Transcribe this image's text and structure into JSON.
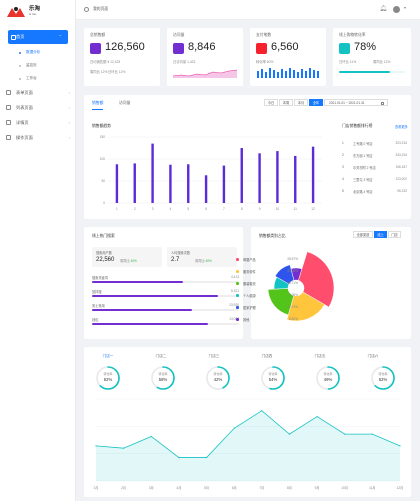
{
  "app": {
    "name": "乐淘",
    "subtitle": "le tao"
  },
  "topbar": {
    "title": "我的页面"
  },
  "sidebar": {
    "items": [
      {
        "label": "首页",
        "active": true
      },
      {
        "label": "数据分析",
        "sub": true,
        "active": true
      },
      {
        "label": "监控页",
        "sub": true
      },
      {
        "label": "工作台",
        "sub": true
      },
      {
        "label": "表单页面"
      },
      {
        "label": "列表页面"
      },
      {
        "label": "详情页"
      },
      {
        "label": "操作页面"
      }
    ]
  },
  "kpis": [
    {
      "label": "总销售额",
      "value": "126,560",
      "line1": "日均销售额 ¥ 12,423",
      "line2a": "周同比 12%",
      "line2b": "日环比 12%",
      "color": "#722ed1"
    },
    {
      "label": "访问量",
      "value": "8,846",
      "line1": "日访问量 1,423",
      "color": "#722ed1"
    },
    {
      "label": "支付笔数",
      "value": "6,560",
      "line1": "转化率 60%",
      "color": "#f5222d"
    },
    {
      "label": "线上购物转化率",
      "value": "78%",
      "line1": "周同比 12%",
      "line2a": "日环比 11%",
      "color": "#13c2c2"
    }
  ],
  "sales": {
    "tabs": [
      "销售额",
      "访问量"
    ],
    "range_buttons": [
      "今日",
      "本周",
      "本月",
      "全年"
    ],
    "date_range": "2021.01.01 ~ 2021.01.31",
    "chart_title": "销售额趋势",
    "rank_title": "门店销售额排行榜",
    "rank_more": "查看更多"
  },
  "rank": [
    {
      "idx": "1",
      "name": "工专路 0 号店",
      "amount": "323,234"
    },
    {
      "idx": "2",
      "name": "东方朋 1 号店",
      "amount": "343,234"
    },
    {
      "idx": "3",
      "name": "中关村附 2 号店",
      "amount": "156,187"
    },
    {
      "idx": "4",
      "name": "三里屯 3 号店",
      "amount": "123,002"
    },
    {
      "idx": "5",
      "name": "北京路 4 号店",
      "amount": "96,232"
    }
  ],
  "chart_data": [
    {
      "type": "bar",
      "title": "销售额趋势",
      "categories": [
        "1",
        "2",
        "3",
        "4",
        "5",
        "6",
        "7",
        "8",
        "9",
        "10",
        "11",
        "12"
      ],
      "values": [
        88,
        90,
        135,
        87,
        88,
        63,
        85,
        125,
        113,
        118,
        107,
        128
      ],
      "yticks": [
        "0",
        "50",
        "100",
        "150"
      ],
      "ylim": [
        0,
        150
      ],
      "color": "#5b2bd6"
    },
    {
      "type": "pie",
      "title": "销售额类别占比",
      "labels": [
        "母婴产品",
        "服务软件",
        "服装鞋衣",
        "个人健康",
        "居家护理",
        "其他"
      ],
      "values": [
        28.57,
        21.08,
        19.71,
        9.05,
        12.73,
        8.82
      ],
      "colors": [
        "#ff4d6d",
        "#ffc53d",
        "#52c41a",
        "#13c2c2",
        "#2f54eb",
        "#722ed1"
      ]
    },
    {
      "type": "area",
      "categories": [
        "1月",
        "2月",
        "3月",
        "4月",
        "5月",
        "6月",
        "7月",
        "8月",
        "9月",
        "10月",
        "11月",
        "12月"
      ],
      "values": [
        30,
        28,
        38,
        20,
        20,
        45,
        60,
        40,
        55,
        40,
        40,
        30
      ],
      "ylim": [
        0,
        70
      ],
      "color": "#13c2c2"
    }
  ],
  "search": {
    "title": "线上热门搜索",
    "users_label": "搜索用户数",
    "users_value": "22,560",
    "users_pct": "40%",
    "per_label": "人均搜索次数",
    "per_value": "2.7",
    "per_pct": "40%",
    "keywords": [
      {
        "name": "搜索关键词",
        "count": "4,413",
        "pct": 0.62
      },
      {
        "name": "回拌搜",
        "count": "5,321",
        "pct": 0.86
      },
      {
        "name": "男士常用",
        "count": "23,920",
        "pct": 0.68
      },
      {
        "name": "钱包",
        "count": "13,003",
        "pct": 0.79
      }
    ]
  },
  "category": {
    "segments": [
      "全部渠道",
      "线上",
      "门店"
    ],
    "legend": [
      {
        "name": "母婴产品",
        "pct": "28.57%"
      },
      {
        "name": "服务软件",
        "pct": "21.08%"
      },
      {
        "name": "服装鞋衣",
        "pct": "19.71%"
      },
      {
        "name": "个人健康",
        "pct": "9.05%"
      },
      {
        "name": "居家护理",
        "pct": "12.73%"
      },
      {
        "name": "其他",
        "pct": "8.82%"
      }
    ]
  },
  "stores": {
    "tabs": [
      "门店一",
      "门店二",
      "门店三",
      "门店四",
      "门店五",
      "门店六"
    ],
    "gauges": [
      {
        "label": "转化率",
        "value": "62%"
      },
      {
        "label": "转化率",
        "value": "58%"
      },
      {
        "label": "转化率",
        "value": "42%"
      },
      {
        "label": "转化率",
        "value": "54%"
      },
      {
        "label": "转化率",
        "value": "49%"
      },
      {
        "label": "转化率",
        "value": "62%"
      }
    ]
  }
}
